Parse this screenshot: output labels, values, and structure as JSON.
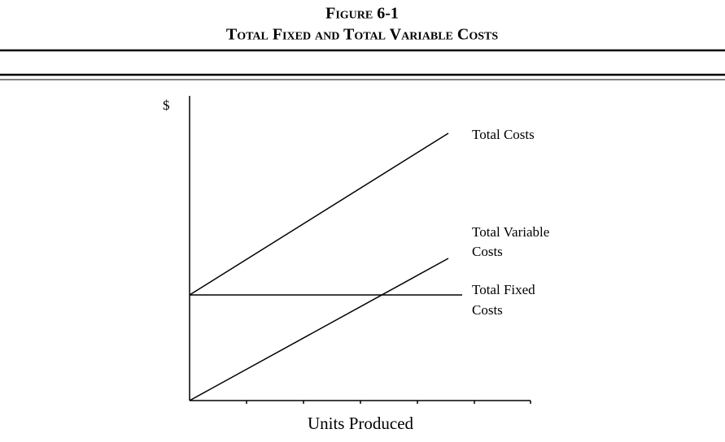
{
  "header": {
    "figure": "Figure 6-1",
    "title": "Total Fixed and Total Variable Costs"
  },
  "axes": {
    "y_label": "$",
    "x_label": "Units Produced"
  },
  "lines": [
    {
      "label": [
        "Total Costs"
      ]
    },
    {
      "label": [
        "Total Variable",
        "Costs"
      ]
    },
    {
      "label": [
        "Total Fixed",
        "Costs"
      ]
    }
  ]
}
